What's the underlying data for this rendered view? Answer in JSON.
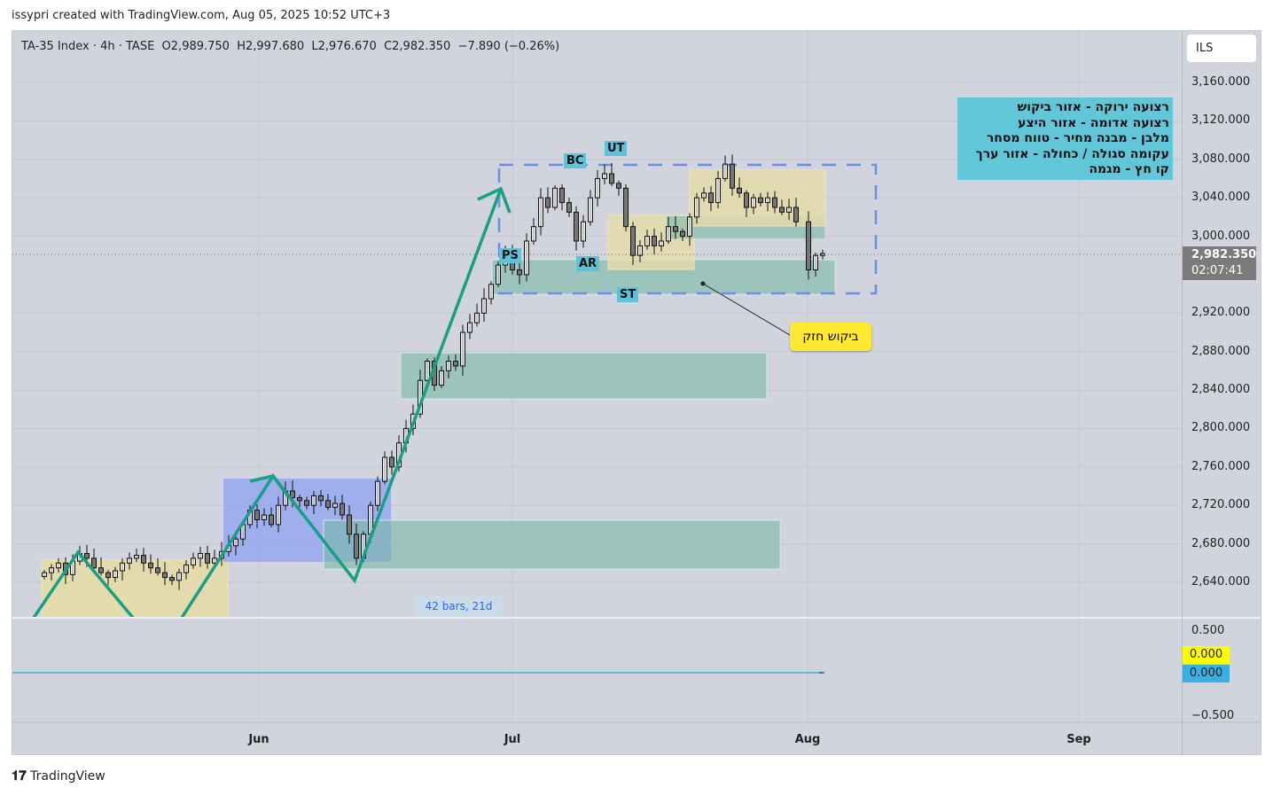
{
  "credit": "issypri created with TradingView.com, Aug 05, 2025 10:52 UTC+3",
  "legend": "TA-35 Index · 4h · TASE  O2,989.750  H2,997.680  L2,976.670  C2,982.350  −7.890 (−0.26%)",
  "currency": "ILS",
  "last_price": "2,982.350",
  "countdown": "02:07:41",
  "measure_label": "42 bars, 21d",
  "note": "ביקוש חזק",
  "info_lines": [
    "רצועה ירוקה - אזור ביקוש",
    "רצועה אדומה - אזור היצע",
    "מלבן - מבנה מחיר - טווח מסחר",
    "עקומה סגולה / כחולה - אזור ערך",
    "קו חץ - מגמה"
  ],
  "wyckoff_labels": {
    "bc": "BC",
    "ut": "UT",
    "ps": "PS",
    "ar": "AR",
    "st": "ST"
  },
  "indicator": {
    "ticks": [
      "0.500",
      "−0.500"
    ],
    "value1": "0.000",
    "value2": "0.000",
    "color1": "#ffff00",
    "color2": "#3ab0e2"
  },
  "footer": "TradingView",
  "chart_data": {
    "type": "candlestick",
    "symbol": "TA-35 Index",
    "interval": "4h",
    "ylim": [
      2600,
      3200
    ],
    "yticks": [
      "3,160.000",
      "3,120.000",
      "3,080.000",
      "3,040.000",
      "3,000.000",
      "2,920.000",
      "2,880.000",
      "2,840.000",
      "2,800.000",
      "2,760.000",
      "2,720.000",
      "2,680.000",
      "2,640.000"
    ],
    "ytick_values": [
      3160,
      3120,
      3080,
      3040,
      3000,
      2920,
      2880,
      2840,
      2800,
      2760,
      2720,
      2680,
      2640
    ],
    "xticks": [
      "Jun",
      "Jul",
      "Aug",
      "Sep"
    ],
    "approx_closes": [
      2650,
      2655,
      2660,
      2648,
      2662,
      2670,
      2665,
      2655,
      2650,
      2645,
      2652,
      2660,
      2665,
      2668,
      2660,
      2655,
      2650,
      2645,
      2642,
      2650,
      2658,
      2665,
      2670,
      2660,
      2665,
      2672,
      2678,
      2685,
      2700,
      2715,
      2705,
      2710,
      2700,
      2720,
      2735,
      2728,
      2725,
      2720,
      2730,
      2725,
      2718,
      2722,
      2710,
      2690,
      2665,
      2690,
      2720,
      2745,
      2770,
      2760,
      2785,
      2800,
      2815,
      2850,
      2870,
      2845,
      2860,
      2870,
      2865,
      2900,
      2910,
      2920,
      2935,
      2950,
      2970,
      2985,
      2965,
      2960,
      2995,
      3010,
      3040,
      3030,
      3050,
      3035,
      3025,
      2995,
      3015,
      3040,
      3060,
      3065,
      3055,
      3050,
      3010,
      2980,
      2990,
      3000,
      2990,
      2995,
      3010,
      3005,
      3000,
      3020,
      3040,
      3045,
      3035,
      3060,
      3075,
      3050,
      3045,
      3030,
      3040,
      3035,
      3040,
      3030,
      3025,
      3030,
      3015,
      2965,
      2980,
      2982
    ],
    "last_close": 2982.35
  }
}
